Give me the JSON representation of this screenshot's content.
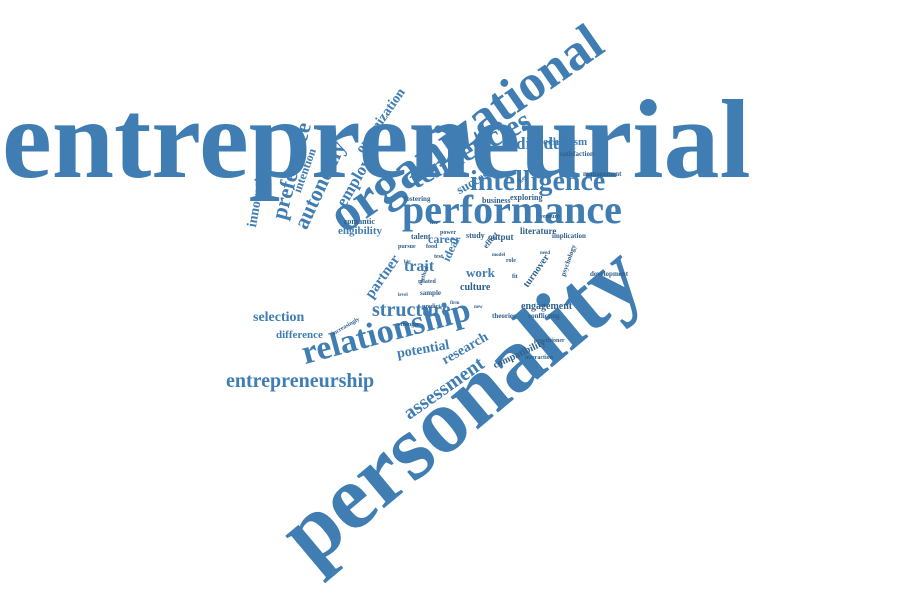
{
  "colors": {
    "main": "#3f7db3",
    "dark": "#2f5f8a"
  },
  "words": [
    {
      "id": "entrepreneurial",
      "text": "entrepreneurial"
    },
    {
      "id": "personality",
      "text": "personality"
    },
    {
      "id": "organizational",
      "text": "organizational"
    },
    {
      "id": "performance",
      "text": "performance"
    },
    {
      "id": "intelligence",
      "text": "intelligence"
    },
    {
      "id": "tendencies",
      "text": "tendencies"
    },
    {
      "id": "relationship",
      "text": "relationship"
    },
    {
      "id": "entrepreneurship",
      "text": "entrepreneurship"
    },
    {
      "id": "assessment",
      "text": "assessment"
    },
    {
      "id": "structure",
      "text": "structure"
    },
    {
      "id": "individual",
      "text": "individual"
    },
    {
      "id": "autonomy",
      "text": "autonomy"
    },
    {
      "id": "preference",
      "text": "preference"
    },
    {
      "id": "employee",
      "text": "employee"
    },
    {
      "id": "organization",
      "text": "organization"
    },
    {
      "id": "innovation",
      "text": "innovation"
    },
    {
      "id": "intention",
      "text": "intention"
    },
    {
      "id": "selection",
      "text": "selection"
    },
    {
      "id": "difference",
      "text": "difference"
    },
    {
      "id": "potential",
      "text": "potential"
    },
    {
      "id": "research",
      "text": "research"
    },
    {
      "id": "partner",
      "text": "partner"
    },
    {
      "id": "trait",
      "text": "trait"
    },
    {
      "id": "work",
      "text": "work"
    },
    {
      "id": "career",
      "text": "career"
    },
    {
      "id": "success",
      "text": "success"
    },
    {
      "id": "eligibility",
      "text": "eligibility"
    },
    {
      "id": "mechanism",
      "text": "mechanism"
    },
    {
      "id": "compatibility",
      "text": "compatibility"
    },
    {
      "id": "engagement",
      "text": "engagement"
    },
    {
      "id": "turnover",
      "text": "turnover"
    },
    {
      "id": "ideal",
      "text": "ideal"
    },
    {
      "id": "culture",
      "text": "culture"
    },
    {
      "id": "output",
      "text": "output"
    },
    {
      "id": "literature",
      "text": "literature"
    },
    {
      "id": "study",
      "text": "study"
    },
    {
      "id": "business",
      "text": "business"
    },
    {
      "id": "exploring",
      "text": "exploring"
    },
    {
      "id": "implication",
      "text": "implication"
    },
    {
      "id": "romantic",
      "text": "romantic"
    },
    {
      "id": "fostering",
      "text": "fostering"
    },
    {
      "id": "talent",
      "text": "talent"
    },
    {
      "id": "effect",
      "text": "effect"
    },
    {
      "id": "development",
      "text": "development"
    },
    {
      "id": "psychology",
      "text": "psychology"
    },
    {
      "id": "conflicting",
      "text": "conflicting"
    },
    {
      "id": "satisfaction",
      "text": "satisfaction"
    },
    {
      "id": "management",
      "text": "management"
    },
    {
      "id": "predict",
      "text": "predict"
    },
    {
      "id": "related",
      "text": "related"
    },
    {
      "id": "sample",
      "text": "sample"
    },
    {
      "id": "method",
      "text": "method"
    },
    {
      "id": "theories",
      "text": "theories"
    },
    {
      "id": "stronger",
      "text": "stronger"
    },
    {
      "id": "practitioner",
      "text": "practitioner"
    },
    {
      "id": "increasingly",
      "text": "increasingly"
    },
    {
      "id": "interaction",
      "text": "interaction"
    },
    {
      "id": "food",
      "text": "food"
    },
    {
      "id": "test",
      "text": "test"
    },
    {
      "id": "power",
      "text": "power"
    },
    {
      "id": "pursue",
      "text": "pursue"
    },
    {
      "id": "venture",
      "text": "venture"
    },
    {
      "id": "role",
      "text": "role"
    },
    {
      "id": "key",
      "text": "key"
    },
    {
      "id": "fit",
      "text": "fit"
    },
    {
      "id": "big",
      "text": "big"
    },
    {
      "id": "five",
      "text": "five"
    },
    {
      "id": "model",
      "text": "model"
    },
    {
      "id": "firm",
      "text": "firm"
    },
    {
      "id": "new",
      "text": "new"
    },
    {
      "id": "level",
      "text": "level"
    },
    {
      "id": "need",
      "text": "need"
    }
  ]
}
